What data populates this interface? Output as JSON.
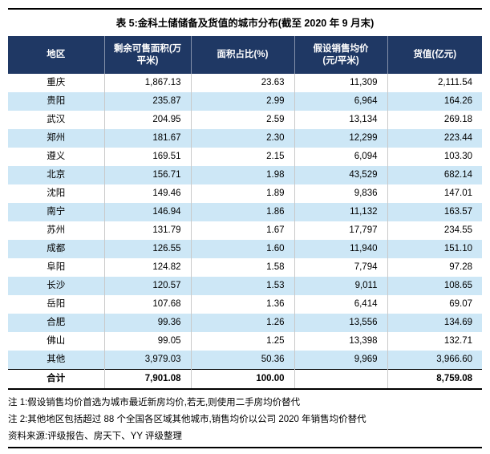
{
  "title": "表 5:金科土储储备及货值的城市分布(截至 2020 年 9 月末)",
  "chart_data": {
    "type": "table",
    "columns": [
      "地区",
      "剩余可售面积(万\n平米)",
      "面积占比(%)",
      "假设销售均价\n(元/平米)",
      "货值(亿元)"
    ],
    "rows": [
      [
        "重庆",
        "1,867.13",
        "23.63",
        "11,309",
        "2,111.54"
      ],
      [
        "贵阳",
        "235.87",
        "2.99",
        "6,964",
        "164.26"
      ],
      [
        "武汉",
        "204.95",
        "2.59",
        "13,134",
        "269.18"
      ],
      [
        "郑州",
        "181.67",
        "2.30",
        "12,299",
        "223.44"
      ],
      [
        "遵义",
        "169.51",
        "2.15",
        "6,094",
        "103.30"
      ],
      [
        "北京",
        "156.71",
        "1.98",
        "43,529",
        "682.14"
      ],
      [
        "沈阳",
        "149.46",
        "1.89",
        "9,836",
        "147.01"
      ],
      [
        "南宁",
        "146.94",
        "1.86",
        "11,132",
        "163.57"
      ],
      [
        "苏州",
        "131.79",
        "1.67",
        "17,797",
        "234.55"
      ],
      [
        "成都",
        "126.55",
        "1.60",
        "11,940",
        "151.10"
      ],
      [
        "阜阳",
        "124.82",
        "1.58",
        "7,794",
        "97.28"
      ],
      [
        "长沙",
        "120.57",
        "1.53",
        "9,011",
        "108.65"
      ],
      [
        "岳阳",
        "107.68",
        "1.36",
        "6,414",
        "69.07"
      ],
      [
        "合肥",
        "99.36",
        "1.26",
        "13,556",
        "134.69"
      ],
      [
        "佛山",
        "99.05",
        "1.25",
        "13,398",
        "132.71"
      ],
      [
        "其他",
        "3,979.03",
        "50.36",
        "9,969",
        "3,966.60"
      ]
    ],
    "total_row": [
      "合计",
      "7,901.08",
      "100.00",
      "",
      "8,759.08"
    ]
  },
  "notes": [
    "注 1:假设销售均价首选为城市最近新房均价,若无,则使用二手房均价替代",
    "注 2:其他地区包括超过 88 个全国各区域其他城市,销售均价以公司 2020 年销售均价替代"
  ],
  "source": "资料来源:评级报告、房天下、YY 评级整理",
  "colors": {
    "header_bg": "#1F3864",
    "band_bg": "#CDE7F6",
    "grid": "#C9C9C9",
    "rule": "#000000"
  }
}
